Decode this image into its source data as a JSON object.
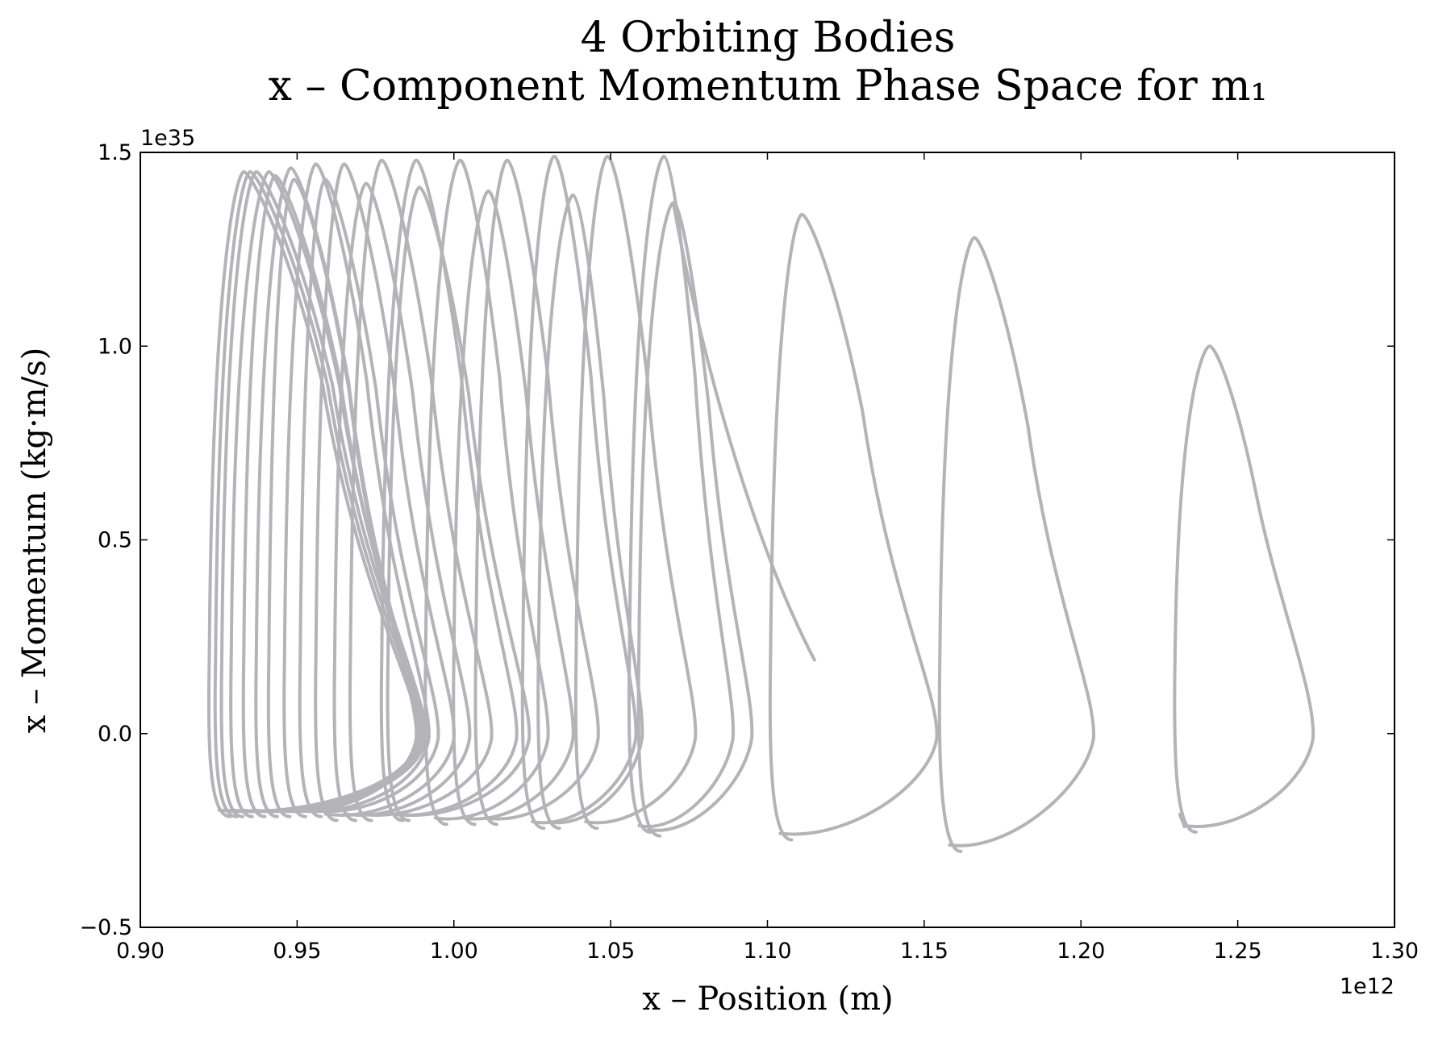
{
  "chart_data": {
    "type": "line",
    "title": "4 Orbiting Bodies",
    "subtitle": "x – Component Momentum Phase Space for m₁",
    "xlabel": "x – Position (m)",
    "ylabel": "x – Momentum (kg·m/s)",
    "x_offset_label": "1e12",
    "y_offset_label": "1e35",
    "xlim": [
      0.9,
      1.3
    ],
    "ylim": [
      -0.5,
      1.5
    ],
    "x_ticks": [
      "0.90",
      "0.95",
      "1.00",
      "1.05",
      "1.10",
      "1.15",
      "1.20",
      "1.25",
      "1.30"
    ],
    "y_ticks": [
      "-0.5",
      "0.0",
      "0.5",
      "1.0",
      "1.5"
    ],
    "grid": false,
    "line_color": "#b3b3b8",
    "loops": [
      {
        "x_left": 0.922,
        "x_peak": 0.933,
        "x_right": 0.989,
        "y_peak": 1.45,
        "y_min": -0.21
      },
      {
        "x_left": 0.924,
        "x_peak": 0.935,
        "x_right": 0.99,
        "y_peak": 1.45,
        "y_min": -0.21
      },
      {
        "x_left": 0.926,
        "x_peak": 0.937,
        "x_right": 0.991,
        "y_peak": 1.45,
        "y_min": -0.21
      },
      {
        "x_left": 0.929,
        "x_peak": 0.941,
        "x_right": 0.991,
        "y_peak": 1.45,
        "y_min": -0.21
      },
      {
        "x_left": 0.933,
        "x_peak": 0.943,
        "x_right": 0.99,
        "y_peak": 1.44,
        "y_min": -0.21
      },
      {
        "x_left": 0.937,
        "x_peak": 0.948,
        "x_right": 0.989,
        "y_peak": 1.46,
        "y_min": -0.21
      },
      {
        "x_left": 0.941,
        "x_peak": 0.949,
        "x_right": 0.988,
        "y_peak": 1.43,
        "y_min": -0.21
      },
      {
        "x_left": 0.946,
        "x_peak": 0.956,
        "x_right": 0.992,
        "y_peak": 1.47,
        "y_min": -0.21
      },
      {
        "x_left": 0.951,
        "x_peak": 0.959,
        "x_right": 0.995,
        "y_peak": 1.43,
        "y_min": -0.21
      },
      {
        "x_left": 0.956,
        "x_peak": 0.965,
        "x_right": 1.0,
        "y_peak": 1.47,
        "y_min": -0.22
      },
      {
        "x_left": 0.962,
        "x_peak": 0.972,
        "x_right": 1.005,
        "y_peak": 1.42,
        "y_min": -0.22
      },
      {
        "x_left": 0.967,
        "x_peak": 0.977,
        "x_right": 1.012,
        "y_peak": 1.48,
        "y_min": -0.22
      },
      {
        "x_left": 0.977,
        "x_peak": 0.988,
        "x_right": 1.02,
        "y_peak": 1.48,
        "y_min": -0.22
      },
      {
        "x_left": 0.979,
        "x_peak": 0.989,
        "x_right": 1.024,
        "y_peak": 1.41,
        "y_min": -0.22
      },
      {
        "x_left": 0.991,
        "x_peak": 1.002,
        "x_right": 1.03,
        "y_peak": 1.48,
        "y_min": -0.23
      },
      {
        "x_left": 1.0,
        "x_peak": 1.011,
        "x_right": 1.038,
        "y_peak": 1.4,
        "y_min": -0.23
      },
      {
        "x_left": 1.007,
        "x_peak": 1.017,
        "x_right": 1.046,
        "y_peak": 1.48,
        "y_min": -0.23
      },
      {
        "x_left": 1.022,
        "x_peak": 1.032,
        "x_right": 1.058,
        "y_peak": 1.49,
        "y_min": -0.24
      },
      {
        "x_left": 1.027,
        "x_peak": 1.038,
        "x_right": 1.06,
        "y_peak": 1.39,
        "y_min": -0.24
      },
      {
        "x_left": 1.039,
        "x_peak": 1.049,
        "x_right": 1.077,
        "y_peak": 1.49,
        "y_min": -0.24
      },
      {
        "x_left": 1.056,
        "x_peak": 1.067,
        "x_right": 1.089,
        "y_peak": 1.49,
        "y_min": -0.25
      },
      {
        "x_left": 1.059,
        "x_peak": 1.07,
        "x_right": 1.095,
        "y_peak": 1.37,
        "y_min": -0.26
      },
      {
        "x_left": 1.101,
        "x_peak": 1.111,
        "x_right": 1.154,
        "y_peak": 1.34,
        "y_min": -0.27
      },
      {
        "x_left": 1.155,
        "x_peak": 1.166,
        "x_right": 1.204,
        "y_peak": 1.28,
        "y_min": -0.3
      },
      {
        "x_left": 1.23,
        "x_peak": 1.241,
        "x_right": 1.274,
        "y_peak": 1.0,
        "y_min": -0.25
      }
    ],
    "start_point": {
      "x": 1.115,
      "y": 0.19
    },
    "end_point": {
      "x": 1.233,
      "y": -0.24
    }
  }
}
